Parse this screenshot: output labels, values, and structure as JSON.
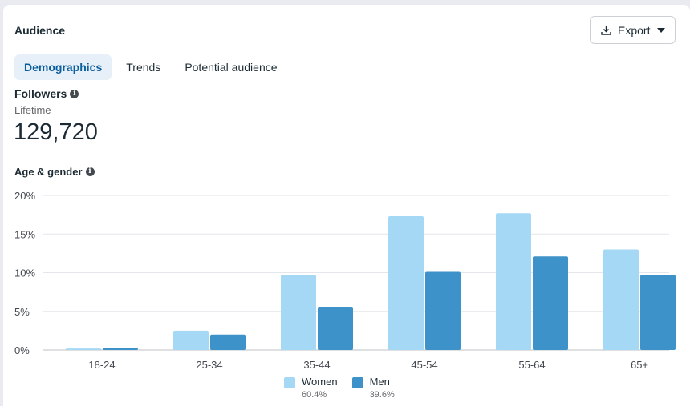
{
  "header": {
    "title": "Audience",
    "export_label": "Export"
  },
  "tabs": [
    {
      "label": "Demographics",
      "active": true
    },
    {
      "label": "Trends",
      "active": false
    },
    {
      "label": "Potential audience",
      "active": false
    }
  ],
  "followers": {
    "label": "Followers",
    "period": "Lifetime",
    "count": "129,720"
  },
  "age_gender": {
    "label": "Age & gender"
  },
  "colors": {
    "women": "#a4d8f5",
    "men": "#3d92c9"
  },
  "legend": [
    {
      "name": "Women",
      "pct": "60.4%"
    },
    {
      "name": "Men",
      "pct": "39.6%"
    }
  ],
  "chart_data": {
    "type": "bar",
    "categories": [
      "18-24",
      "25-34",
      "35-44",
      "45-54",
      "55-64",
      "65+"
    ],
    "series": [
      {
        "name": "Women",
        "values": [
          0.2,
          2.5,
          9.7,
          17.3,
          17.7,
          13.0
        ]
      },
      {
        "name": "Men",
        "values": [
          0.3,
          2.0,
          5.6,
          10.1,
          12.1,
          9.7
        ]
      }
    ],
    "yticks": [
      "0%",
      "5%",
      "10%",
      "15%",
      "20%"
    ],
    "ylim": [
      0,
      20
    ],
    "grid": true,
    "legend_position": "bottom"
  }
}
